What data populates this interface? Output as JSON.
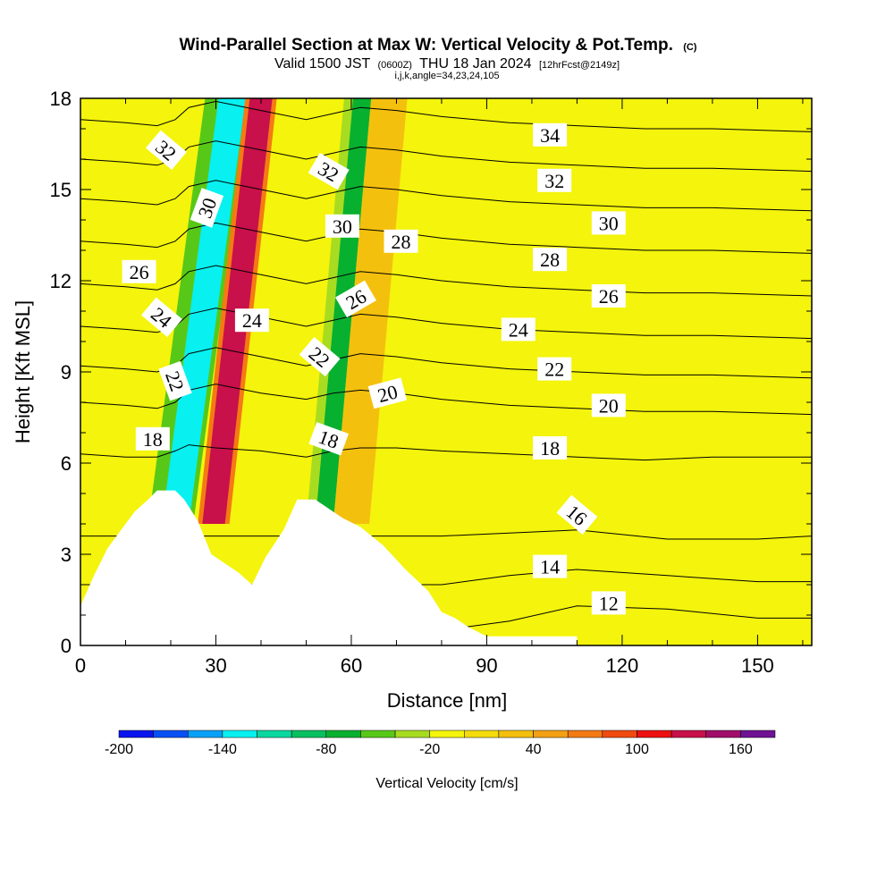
{
  "header": {
    "title_main": "Wind-Parallel Section at Max W: Vertical Velocity & Pot.Temp.",
    "title_unit": "(C)",
    "sub_valid": "Valid 1500 JST",
    "sub_zulu": "(0600Z)",
    "sub_date": "THU 18 Jan 2024",
    "sub_fcst": "[12hrFcst@2149z]",
    "sub_indices": "i,j,k,angle=34,23,24,105"
  },
  "chart_data": {
    "type": "contour",
    "xlabel": "Distance [nm]",
    "ylabel": "Height [Kft MSL]",
    "xlim": [
      0,
      162
    ],
    "ylim": [
      0,
      18
    ],
    "x_ticks": [
      0,
      30,
      60,
      90,
      120,
      150
    ],
    "y_ticks": [
      0,
      3,
      6,
      9,
      12,
      15,
      18
    ],
    "x_tick_labels": [
      "0",
      "30",
      "60",
      "90",
      "120",
      "150"
    ],
    "y_tick_labels": [
      "0",
      "3",
      "6",
      "9",
      "12",
      "15",
      "18"
    ],
    "colorbar": {
      "title": "Vertical Velocity [cm/s]",
      "levels": [
        -200,
        -180,
        -160,
        -140,
        -120,
        -100,
        -80,
        -60,
        -40,
        -20,
        0,
        20,
        40,
        60,
        80,
        100,
        120,
        140,
        160,
        180
      ],
      "tick_values": [
        -200,
        -140,
        -80,
        -20,
        40,
        100,
        160
      ],
      "tick_labels": [
        "-200",
        "-140",
        "-80",
        "-20",
        "40",
        "100",
        "160"
      ],
      "colors": [
        "#0a14ee",
        "#0850f4",
        "#06a0f6",
        "#08f0f0",
        "#08d8a0",
        "#06c060",
        "#08b030",
        "#58c818",
        "#a8dc20",
        "#f4f40c",
        "#f4dc0c",
        "#f4c00e",
        "#f4a014",
        "#f47a14",
        "#f04a10",
        "#ec1010",
        "#c8104a",
        "#a00e6a",
        "#6e1292"
      ]
    },
    "terrain": [
      [
        0,
        1.3
      ],
      [
        3,
        2.3
      ],
      [
        6,
        3.2
      ],
      [
        9,
        3.8
      ],
      [
        12,
        4.4
      ],
      [
        15,
        4.8
      ],
      [
        17,
        5.1
      ],
      [
        21,
        5.1
      ],
      [
        23,
        4.8
      ],
      [
        26,
        4.1
      ],
      [
        29,
        3.0
      ],
      [
        32,
        2.7
      ],
      [
        35,
        2.4
      ],
      [
        38,
        2.0
      ],
      [
        41,
        2.9
      ],
      [
        45,
        3.8
      ],
      [
        48,
        4.8
      ],
      [
        52,
        4.8
      ],
      [
        58,
        4.2
      ],
      [
        62,
        3.9
      ],
      [
        67,
        3.3
      ],
      [
        72,
        2.5
      ],
      [
        77,
        1.8
      ],
      [
        80,
        1.1
      ],
      [
        83,
        0.9
      ],
      [
        86,
        0.6
      ],
      [
        90,
        0.3
      ],
      [
        95,
        0.3
      ],
      [
        110,
        0.3
      ]
    ],
    "theta_contours": [
      {
        "value": 12,
        "x": [
          0,
          30,
          60,
          80,
          95,
          110,
          130,
          150,
          162
        ],
        "y": [
          0.5,
          0.5,
          0.5,
          0.5,
          0.8,
          1.3,
          1.2,
          0.9,
          0.9
        ]
      },
      {
        "value": 14,
        "x": [
          0,
          30,
          60,
          80,
          95,
          110,
          130,
          150,
          162
        ],
        "y": [
          2.0,
          2.0,
          2.0,
          2.0,
          2.3,
          2.5,
          2.3,
          2.1,
          2.1
        ]
      },
      {
        "value": 16,
        "x": [
          0,
          30,
          60,
          80,
          95,
          110,
          130,
          150,
          162
        ],
        "y": [
          3.6,
          3.6,
          3.6,
          3.6,
          3.7,
          3.8,
          3.5,
          3.5,
          3.6
        ]
      },
      {
        "value": 18,
        "x": [
          0,
          10,
          17,
          21,
          24,
          30,
          40,
          50,
          56,
          62,
          70,
          80,
          95,
          110,
          125,
          140,
          162
        ],
        "y": [
          6.3,
          6.2,
          6.2,
          6.4,
          6.6,
          6.5,
          6.4,
          6.2,
          6.4,
          6.5,
          6.5,
          6.4,
          6.3,
          6.2,
          6.1,
          6.2,
          6.2
        ]
      },
      {
        "value": 20,
        "x": [
          0,
          10,
          17,
          21,
          24,
          30,
          40,
          50,
          56,
          62,
          70,
          80,
          95,
          110,
          125,
          140,
          162
        ],
        "y": [
          8.0,
          7.9,
          7.8,
          8.0,
          8.4,
          8.6,
          8.3,
          8.1,
          8.3,
          8.4,
          8.3,
          8.1,
          7.9,
          7.8,
          7.7,
          7.7,
          7.6
        ]
      },
      {
        "value": 22,
        "x": [
          0,
          10,
          17,
          21,
          24,
          30,
          40,
          50,
          56,
          62,
          70,
          80,
          95,
          110,
          125,
          140,
          162
        ],
        "y": [
          9.2,
          9.1,
          9.0,
          9.2,
          9.6,
          9.8,
          9.5,
          9.2,
          9.4,
          9.6,
          9.5,
          9.3,
          9.1,
          9.0,
          8.9,
          8.9,
          8.8
        ]
      },
      {
        "value": 24,
        "x": [
          0,
          10,
          17,
          21,
          24,
          30,
          40,
          50,
          56,
          62,
          70,
          80,
          95,
          110,
          125,
          140,
          162
        ],
        "y": [
          10.5,
          10.4,
          10.3,
          10.5,
          10.9,
          11.1,
          10.8,
          10.5,
          10.7,
          10.9,
          10.8,
          10.6,
          10.4,
          10.3,
          10.2,
          10.2,
          10.1
        ]
      },
      {
        "value": 26,
        "x": [
          0,
          10,
          17,
          21,
          24,
          30,
          40,
          50,
          56,
          62,
          70,
          80,
          95,
          110,
          125,
          140,
          162
        ],
        "y": [
          11.9,
          11.8,
          11.7,
          11.9,
          12.3,
          12.5,
          12.2,
          11.9,
          12.1,
          12.3,
          12.2,
          12.0,
          11.8,
          11.7,
          11.6,
          11.6,
          11.5
        ]
      },
      {
        "value": 28,
        "x": [
          0,
          10,
          17,
          21,
          24,
          30,
          40,
          50,
          56,
          62,
          70,
          80,
          95,
          110,
          125,
          140,
          162
        ],
        "y": [
          13.3,
          13.2,
          13.1,
          13.3,
          13.7,
          13.9,
          13.6,
          13.3,
          13.5,
          13.7,
          13.6,
          13.4,
          13.2,
          13.1,
          13.0,
          13.0,
          12.9
        ]
      },
      {
        "value": 30,
        "x": [
          0,
          10,
          17,
          21,
          24,
          30,
          40,
          50,
          56,
          62,
          70,
          80,
          95,
          110,
          125,
          140,
          162
        ],
        "y": [
          14.7,
          14.6,
          14.5,
          14.7,
          15.1,
          15.3,
          15.0,
          14.7,
          14.9,
          15.1,
          15.0,
          14.8,
          14.6,
          14.5,
          14.4,
          14.4,
          14.3
        ]
      },
      {
        "value": 32,
        "x": [
          0,
          10,
          17,
          21,
          24,
          30,
          40,
          50,
          56,
          62,
          70,
          80,
          95,
          110,
          125,
          140,
          162
        ],
        "y": [
          16.0,
          15.9,
          15.8,
          16.0,
          16.4,
          16.6,
          16.3,
          16.0,
          16.2,
          16.4,
          16.3,
          16.1,
          15.9,
          15.8,
          15.7,
          15.7,
          15.6
        ]
      },
      {
        "value": 34,
        "x": [
          0,
          10,
          17,
          21,
          24,
          30,
          40,
          50,
          56,
          62,
          70,
          80,
          95,
          110,
          125,
          140,
          162
        ],
        "y": [
          17.3,
          17.2,
          17.1,
          17.3,
          17.7,
          17.9,
          17.6,
          17.3,
          17.5,
          17.7,
          17.6,
          17.4,
          17.2,
          17.1,
          17.0,
          17.0,
          16.9
        ]
      }
    ],
    "contour_labels": [
      {
        "text": "34",
        "x": 104,
        "y": 16.8,
        "angle": 0
      },
      {
        "text": "32",
        "x": 105,
        "y": 15.3,
        "angle": 0
      },
      {
        "text": "30",
        "x": 117,
        "y": 13.9,
        "angle": 0
      },
      {
        "text": "28",
        "x": 104,
        "y": 12.7,
        "angle": 0
      },
      {
        "text": "26",
        "x": 117,
        "y": 11.5,
        "angle": 0
      },
      {
        "text": "24",
        "x": 97,
        "y": 10.4,
        "angle": 0
      },
      {
        "text": "22",
        "x": 105,
        "y": 9.1,
        "angle": 0
      },
      {
        "text": "20",
        "x": 117,
        "y": 7.9,
        "angle": 0
      },
      {
        "text": "18",
        "x": 104,
        "y": 6.5,
        "angle": 0
      },
      {
        "text": "16",
        "x": 110,
        "y": 4.3,
        "angle": 40
      },
      {
        "text": "14",
        "x": 104,
        "y": 2.6,
        "angle": 0
      },
      {
        "text": "12",
        "x": 117,
        "y": 1.4,
        "angle": 0
      },
      {
        "text": "32",
        "x": 19,
        "y": 16.3,
        "angle": 40
      },
      {
        "text": "30",
        "x": 28,
        "y": 14.4,
        "angle": -70
      },
      {
        "text": "26",
        "x": 13,
        "y": 12.3,
        "angle": 0
      },
      {
        "text": "24",
        "x": 18,
        "y": 10.8,
        "angle": 40
      },
      {
        "text": "22",
        "x": 21,
        "y": 8.7,
        "angle": 70
      },
      {
        "text": "18",
        "x": 16,
        "y": 6.8,
        "angle": 0
      },
      {
        "text": "24",
        "x": 38,
        "y": 10.7,
        "angle": 0
      },
      {
        "text": "32",
        "x": 55,
        "y": 15.6,
        "angle": 30
      },
      {
        "text": "30",
        "x": 58,
        "y": 13.8,
        "angle": 0
      },
      {
        "text": "28",
        "x": 71,
        "y": 13.3,
        "angle": 0
      },
      {
        "text": "26",
        "x": 61,
        "y": 11.4,
        "angle": -30
      },
      {
        "text": "22",
        "x": 53,
        "y": 9.5,
        "angle": 40
      },
      {
        "text": "20",
        "x": 68,
        "y": 8.3,
        "angle": -15
      },
      {
        "text": "18",
        "x": 55,
        "y": 6.8,
        "angle": 20
      }
    ],
    "w_bands": [
      {
        "x": [
          15,
          25
        ],
        "w": -60,
        "tilt": 0.9
      },
      {
        "x": [
          18,
          24
        ],
        "w": -140,
        "tilt": 0.9
      },
      {
        "x": [
          26,
          33
        ],
        "w": 60,
        "tilt": 0.75
      },
      {
        "x": [
          27,
          32
        ],
        "w": 130,
        "tilt": 0.75
      },
      {
        "x": [
          50,
          58
        ],
        "w": -40,
        "tilt": 0.6
      },
      {
        "x": [
          52,
          56
        ],
        "w": -80,
        "tilt": 0.6
      },
      {
        "x": [
          56,
          64
        ],
        "w": 20,
        "tilt": 0.6
      }
    ]
  }
}
